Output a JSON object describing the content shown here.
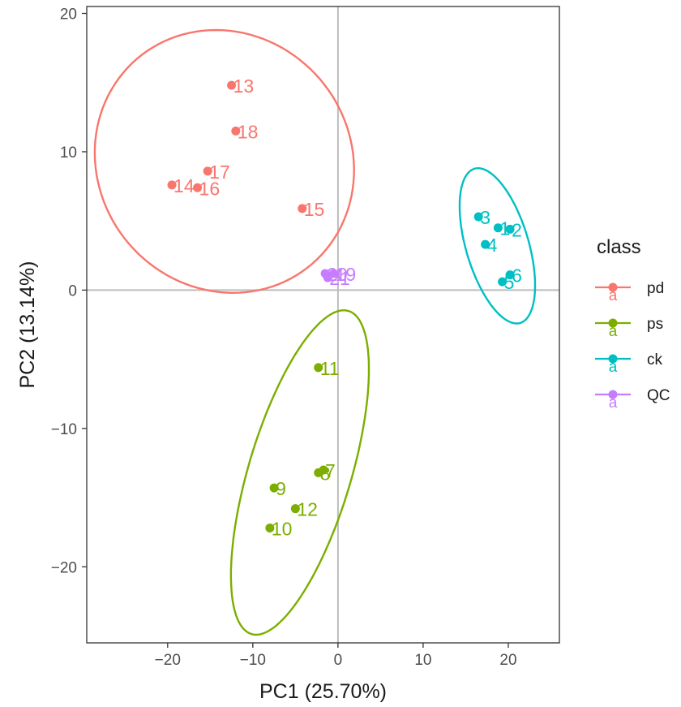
{
  "chart_data": {
    "type": "scatter",
    "xlabel": "PC1 (25.70%)",
    "ylabel": "PC2 (13.14%)",
    "xlim": [
      -29.5,
      26
    ],
    "ylim": [
      -25.5,
      20.5
    ],
    "xticks": [
      -20,
      -10,
      0,
      10,
      20
    ],
    "yticks": [
      -20,
      -10,
      0,
      10,
      20
    ],
    "xtick_labels": [
      "−20",
      "−10",
      "0",
      "10",
      "20"
    ],
    "ytick_labels": [
      "−20",
      "−10",
      "0",
      "10",
      "20"
    ],
    "grid": false,
    "zero_lines": true,
    "ellipses": true,
    "legend": {
      "title": "class",
      "position": "right",
      "key_glyph": "a"
    },
    "series": [
      {
        "name": "pd",
        "color": "#F8766D",
        "points": [
          {
            "label": "13",
            "x": -12.5,
            "y": 14.8
          },
          {
            "label": "18",
            "x": -12.0,
            "y": 11.5
          },
          {
            "label": "17",
            "x": -15.3,
            "y": 8.6
          },
          {
            "label": "14",
            "x": -19.5,
            "y": 7.6
          },
          {
            "label": "16",
            "x": -16.5,
            "y": 7.4
          },
          {
            "label": "15",
            "x": -4.2,
            "y": 5.9
          }
        ]
      },
      {
        "name": "ps",
        "color": "#7CAE00",
        "points": [
          {
            "label": "11",
            "x": -2.3,
            "y": -5.6
          },
          {
            "label": "8",
            "x": -2.3,
            "y": -13.2
          },
          {
            "label": "7",
            "x": -1.7,
            "y": -13.0
          },
          {
            "label": "9",
            "x": -7.5,
            "y": -14.3
          },
          {
            "label": "12",
            "x": -5.0,
            "y": -15.8
          },
          {
            "label": "10",
            "x": -8.0,
            "y": -17.2
          }
        ]
      },
      {
        "name": "ck",
        "color": "#00BFC4",
        "points": [
          {
            "label": "3",
            "x": 16.5,
            "y": 5.3
          },
          {
            "label": "1",
            "x": 18.8,
            "y": 4.5
          },
          {
            "label": "2",
            "x": 20.2,
            "y": 4.4
          },
          {
            "label": "4",
            "x": 17.3,
            "y": 3.3
          },
          {
            "label": "6",
            "x": 20.2,
            "y": 1.1
          },
          {
            "label": "5",
            "x": 19.3,
            "y": 0.6
          }
        ]
      },
      {
        "name": "QC",
        "color": "#C77CFF",
        "points": [
          {
            "label": "20",
            "x": -1.5,
            "y": 1.2
          },
          {
            "label": "19",
            "x": -0.5,
            "y": 1.2
          },
          {
            "label": "21",
            "x": -1.2,
            "y": 0.9
          }
        ]
      }
    ]
  }
}
